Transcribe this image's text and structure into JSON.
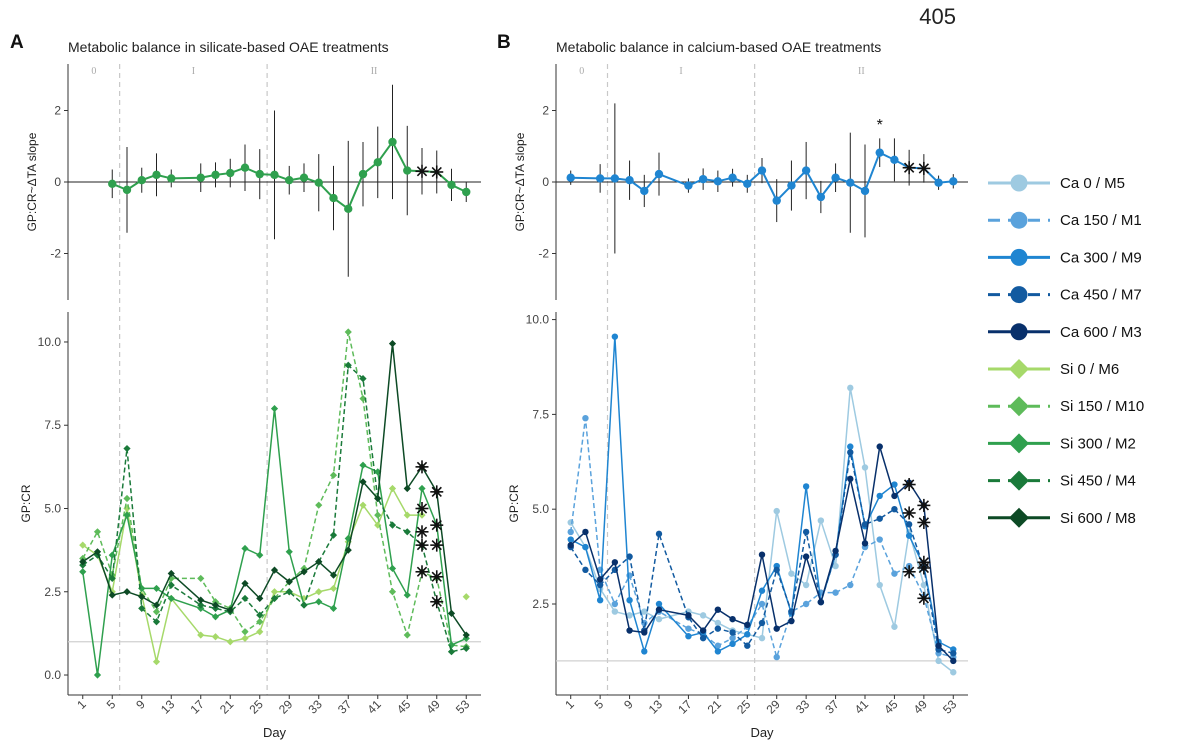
{
  "page_number": "405",
  "days": [
    1,
    3,
    5,
    7,
    9,
    11,
    13,
    17,
    19,
    21,
    23,
    25,
    27,
    29,
    31,
    33,
    35,
    37,
    39,
    41,
    43,
    45,
    47,
    49,
    51,
    53
  ],
  "chart_data": [
    {
      "type": "line",
      "panel_letter": "A",
      "title": "Metabolic balance in silicate-based OAE treatments",
      "phases": [
        "0",
        "I",
        "II"
      ],
      "phase_boundaries": [
        6,
        26
      ],
      "x_label": "Day",
      "x_ticks": [
        1,
        5,
        9,
        13,
        17,
        21,
        25,
        29,
        33,
        37,
        41,
        45,
        49,
        53
      ],
      "x_range": [
        -1,
        55
      ],
      "top": {
        "ylabel": "GP:CR~ΔTA slope",
        "ylim": [
          -3.3,
          3.3
        ],
        "y_ticks": [
          -2,
          0,
          2
        ],
        "color": "#2fa04e",
        "x": [
          5,
          7,
          9,
          11,
          13,
          17,
          19,
          21,
          23,
          25,
          27,
          29,
          31,
          33,
          35,
          37,
          39,
          41,
          43,
          45,
          47,
          49,
          51,
          53
        ],
        "values": [
          -0.05,
          -0.22,
          0.05,
          0.2,
          0.1,
          0.12,
          0.2,
          0.25,
          0.4,
          0.22,
          0.2,
          0.05,
          0.12,
          -0.02,
          -0.45,
          -0.75,
          0.22,
          0.55,
          1.12,
          0.32,
          0.3,
          0.28,
          -0.08,
          -0.28
        ],
        "err": [
          0.4,
          1.2,
          0.35,
          0.6,
          0.25,
          0.4,
          0.35,
          0.4,
          0.65,
          0.7,
          1.8,
          0.4,
          0.4,
          0.8,
          0.9,
          1.9,
          0.9,
          1.0,
          1.6,
          1.25,
          0.65,
          0.6,
          0.45,
          0.28
        ],
        "starred_x": [
          47,
          49
        ]
      },
      "bottom": {
        "ylabel": "GP:CR",
        "ylim": [
          -0.6,
          10.9
        ],
        "y_ticks": [
          0.0,
          2.5,
          5.0,
          7.5,
          10.0
        ],
        "y_tick_labels": [
          "0.0",
          "2.5",
          "5.0",
          "7.5",
          "10.0"
        ],
        "reference_line": 1,
        "series": [
          {
            "name": "Si 0 / M6",
            "color": "#a6d96a",
            "dashed": false,
            "marker": "diamond",
            "values": [
              3.9,
              3.6,
              2.5,
              5.0,
              2.4,
              0.4,
              2.3,
              1.2,
              1.15,
              1.0,
              1.1,
              1.3,
              2.5,
              2.5,
              2.3,
              2.5,
              2.6,
              4.0,
              5.1,
              4.5,
              5.6,
              4.8,
              4.8,
              null,
              null,
              2.35
            ]
          },
          {
            "name": "Si 150 / M10",
            "color": "#5ebb5a",
            "dashed": true,
            "marker": "diamond",
            "values": [
              3.5,
              4.3,
              3.0,
              5.3,
              2.6,
              1.9,
              2.9,
              2.9,
              2.2,
              2.0,
              1.3,
              1.6,
              2.3,
              2.8,
              3.2,
              5.1,
              6.0,
              10.3,
              8.3,
              4.8,
              2.5,
              1.2,
              3.1,
              2.9,
              0.9,
              0.85
            ]
          },
          {
            "name": "Si 300 / M2",
            "color": "#2fa04e",
            "dashed": false,
            "marker": "diamond",
            "values": [
              3.1,
              0.0,
              3.6,
              4.8,
              2.6,
              2.6,
              2.3,
              2.0,
              1.75,
              1.95,
              3.8,
              3.6,
              8.0,
              3.7,
              2.1,
              2.2,
              2.0,
              4.1,
              6.3,
              6.1,
              3.2,
              2.4,
              5.6,
              4.5,
              0.9,
              1.1
            ]
          },
          {
            "name": "Si 450 / M4",
            "color": "#1a7a3a",
            "dashed": true,
            "marker": "diamond",
            "values": [
              3.3,
              3.6,
              2.9,
              6.8,
              2.0,
              1.6,
              2.7,
              2.1,
              2.0,
              1.9,
              2.3,
              1.8,
              2.3,
              2.5,
              2.1,
              3.4,
              4.2,
              9.3,
              8.9,
              5.3,
              4.5,
              4.3,
              3.9,
              2.2,
              0.7,
              0.8
            ]
          },
          {
            "name": "Si 600 / M8",
            "color": "#0d4a25",
            "dashed": false,
            "marker": "diamond",
            "values": [
              3.4,
              3.7,
              2.4,
              2.5,
              2.35,
              2.1,
              3.05,
              2.25,
              2.1,
              1.95,
              2.75,
              2.3,
              3.15,
              2.8,
              3.1,
              3.4,
              3.0,
              3.75,
              5.8,
              5.3,
              9.95,
              5.6,
              6.25,
              5.5,
              1.85,
              1.2
            ]
          }
        ],
        "stars": [
          [
            47,
            6.25
          ],
          [
            47,
            5.0
          ],
          [
            47,
            4.3
          ],
          [
            47,
            3.9
          ],
          [
            47,
            3.1
          ],
          [
            49,
            5.5
          ],
          [
            49,
            4.5
          ],
          [
            49,
            3.9
          ],
          [
            49,
            2.95
          ],
          [
            49,
            2.2
          ]
        ]
      }
    },
    {
      "type": "line",
      "panel_letter": "B",
      "title": "Metabolic balance in calcium-based OAE treatments",
      "phases": [
        "0",
        "I",
        "II"
      ],
      "phase_boundaries": [
        6,
        26
      ],
      "x_label": "Day",
      "x_ticks": [
        1,
        5,
        9,
        13,
        17,
        21,
        25,
        29,
        33,
        37,
        41,
        45,
        49,
        53
      ],
      "x_range": [
        -1,
        55
      ],
      "top": {
        "ylabel": "GP:CR~ΔTA slope",
        "ylim": [
          -3.3,
          3.3
        ],
        "y_ticks": [
          -2,
          0,
          2
        ],
        "color": "#1f85d1",
        "x": [
          1,
          5,
          7,
          9,
          11,
          13,
          17,
          19,
          21,
          23,
          25,
          27,
          29,
          31,
          33,
          35,
          37,
          39,
          41,
          43,
          45,
          47,
          49,
          51,
          53
        ],
        "values": [
          0.12,
          0.1,
          0.1,
          0.05,
          -0.25,
          0.22,
          -0.1,
          0.08,
          0.02,
          0.12,
          -0.05,
          0.32,
          -0.52,
          -0.1,
          0.32,
          -0.42,
          0.12,
          -0.02,
          -0.25,
          0.82,
          0.62,
          0.4,
          0.38,
          -0.02,
          0.02
        ],
        "err": [
          0.2,
          0.4,
          2.1,
          0.55,
          0.45,
          0.6,
          0.2,
          0.3,
          0.3,
          0.25,
          0.25,
          0.35,
          0.6,
          0.7,
          0.8,
          0.45,
          0.4,
          1.4,
          1.3,
          0.4,
          0.6,
          0.5,
          0.4,
          0.2,
          0.2
        ],
        "starred_x": [
          47,
          49
        ],
        "annotation": {
          "x": 43,
          "y": 1.62,
          "text": "*"
        }
      },
      "bottom": {
        "ylabel": "GP:CR",
        "ylim": [
          0.1,
          10.2
        ],
        "y_ticks": [
          2.5,
          5.0,
          7.5,
          10.0
        ],
        "y_tick_labels": [
          "2.5",
          "5.0",
          "7.5",
          "10.0"
        ],
        "reference_line": 1,
        "series": [
          {
            "name": "Ca 0 / M5",
            "color": "#9ecae1",
            "dashed": false,
            "marker": "circle",
            "values": [
              4.65,
              4.0,
              2.9,
              2.3,
              2.2,
              2.3,
              2.1,
              2.3,
              2.2,
              2.0,
              1.8,
              1.7,
              1.6,
              4.95,
              3.3,
              3.0,
              4.7,
              3.5,
              8.2,
              6.1,
              3.0,
              1.9,
              4.4,
              3.0,
              1.0,
              0.7
            ]
          },
          {
            "name": "Ca 150 / M1",
            "color": "#5aa2dc",
            "dashed": true,
            "marker": "circle",
            "values": [
              4.4,
              7.4,
              3.4,
              2.5,
              3.25,
              2.0,
              2.3,
              1.85,
              1.7,
              1.4,
              1.6,
              1.9,
              2.5,
              1.1,
              2.3,
              2.5,
              2.8,
              2.8,
              3.0,
              4.0,
              4.2,
              3.3,
              3.5,
              2.7,
              1.2,
              1.1
            ]
          },
          {
            "name": "Ca 300 / M9",
            "color": "#1f85d1",
            "dashed": false,
            "marker": "circle",
            "values": [
              4.2,
              4.0,
              2.6,
              9.55,
              2.6,
              1.25,
              2.5,
              1.65,
              1.75,
              1.25,
              1.45,
              1.7,
              2.85,
              3.5,
              2.25,
              5.6,
              2.55,
              3.8,
              6.65,
              4.55,
              5.35,
              5.65,
              4.3,
              3.5,
              1.5,
              1.3
            ]
          },
          {
            "name": "Ca 450 / M7",
            "color": "#125aa0",
            "dashed": true,
            "marker": "circle",
            "values": [
              4.0,
              3.4,
              3.0,
              3.4,
              3.75,
              1.8,
              4.35,
              2.15,
              1.6,
              1.85,
              1.75,
              1.4,
              2.0,
              3.4,
              2.3,
              4.4,
              2.55,
              3.8,
              6.5,
              4.6,
              4.75,
              5.0,
              4.6,
              3.45,
              1.3,
              1.2
            ]
          },
          {
            "name": "Ca 600 / M3",
            "color": "#08306b",
            "dashed": false,
            "marker": "circle",
            "values": [
              4.05,
              4.4,
              3.15,
              3.6,
              1.8,
              1.75,
              2.35,
              2.2,
              1.8,
              2.35,
              2.1,
              1.95,
              3.8,
              1.85,
              2.05,
              3.75,
              2.55,
              3.9,
              5.8,
              4.1,
              6.65,
              5.35,
              5.7,
              5.1,
              1.4,
              1.0
            ]
          }
        ],
        "stars": [
          [
            47,
            5.65
          ],
          [
            47,
            4.9
          ],
          [
            47,
            3.35
          ],
          [
            49,
            5.1
          ],
          [
            49,
            4.65
          ],
          [
            49,
            3.6
          ],
          [
            49,
            3.45
          ],
          [
            49,
            2.65
          ]
        ]
      }
    }
  ],
  "legend": [
    {
      "name": "Ca 0 / M5",
      "color": "#9ecae1",
      "dashed": false,
      "marker": "circle"
    },
    {
      "name": "Ca 150 / M1",
      "color": "#5aa2dc",
      "dashed": true,
      "marker": "circle"
    },
    {
      "name": "Ca 300 / M9",
      "color": "#1f85d1",
      "dashed": false,
      "marker": "circle"
    },
    {
      "name": "Ca 450 / M7",
      "color": "#125aa0",
      "dashed": true,
      "marker": "circle"
    },
    {
      "name": "Ca 600 / M3",
      "color": "#08306b",
      "dashed": false,
      "marker": "circle"
    },
    {
      "name": "Si 0 / M6",
      "color": "#a6d96a",
      "dashed": false,
      "marker": "diamond"
    },
    {
      "name": "Si 150 / M10",
      "color": "#5ebb5a",
      "dashed": true,
      "marker": "diamond"
    },
    {
      "name": "Si 300 / M2",
      "color": "#2fa04e",
      "dashed": false,
      "marker": "diamond"
    },
    {
      "name": "Si 450 / M4",
      "color": "#1a7a3a",
      "dashed": true,
      "marker": "diamond"
    },
    {
      "name": "Si 600 / M8",
      "color": "#0d4a25",
      "dashed": false,
      "marker": "diamond"
    }
  ]
}
